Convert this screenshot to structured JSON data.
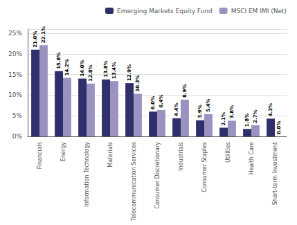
{
  "chart_data": {
    "type": "bar",
    "categories": [
      "Financials",
      "Energy",
      "Information Technology",
      "Materials",
      "Telecommunication Services",
      "Consumer Discretionary",
      "Industrials",
      "Consumer Staples",
      "Utilities",
      "Health Care",
      "Short-term Investment"
    ],
    "series": [
      {
        "name": "Emerging Markets Equity Fund",
        "color": "#2e2f6b",
        "values": [
          21.0,
          15.8,
          14.0,
          13.8,
          12.9,
          6.0,
          4.4,
          3.9,
          2.1,
          1.8,
          4.3
        ],
        "value_labels": [
          "21.0%",
          "15.8%",
          "14.0%",
          "13.8%",
          "12.9%",
          "6.0%",
          "4.4%",
          "3.9%",
          "2.1%",
          "1.8%",
          "4.3%"
        ]
      },
      {
        "name": "MSCI EM IMI (Net)",
        "color": "#9b93bf",
        "values": [
          22.1,
          14.2,
          12.8,
          13.4,
          10.3,
          6.4,
          8.9,
          5.4,
          3.8,
          2.7,
          0.0
        ],
        "value_labels": [
          "22.1%",
          "14.2%",
          "12.8%",
          "13.4%",
          "10.3%",
          "6.4%",
          "8.9%",
          "5.4%",
          "3.8%",
          "2.7%",
          "0.0%"
        ]
      }
    ],
    "ylim": [
      0,
      26
    ],
    "yticks": [
      {
        "value": 0,
        "label": "0%"
      },
      {
        "value": 5,
        "label": "5%"
      },
      {
        "value": 10,
        "label": "10%"
      },
      {
        "value": 15,
        "label": "15%"
      },
      {
        "value": 20,
        "label": "20%"
      },
      {
        "value": 25,
        "label": "25%"
      }
    ],
    "grid": true,
    "legend": "upper right",
    "data_labels": true
  }
}
